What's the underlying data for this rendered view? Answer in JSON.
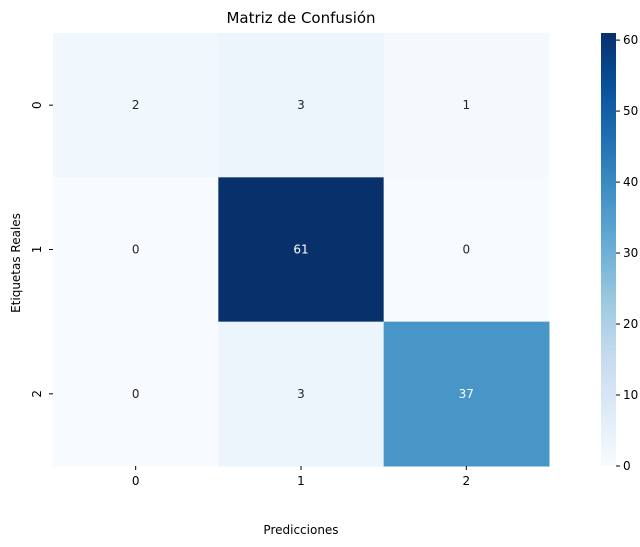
{
  "chart_data": {
    "type": "heatmap",
    "title": "Matriz de Confusión",
    "xlabel": "Predicciones",
    "ylabel": "Etiquetas Reales",
    "x_categories": [
      "0",
      "1",
      "2"
    ],
    "y_categories": [
      "0",
      "1",
      "2"
    ],
    "values": [
      [
        2,
        3,
        1
      ],
      [
        0,
        61,
        0
      ],
      [
        0,
        3,
        37
      ]
    ],
    "colormap": "Blues",
    "color_range": [
      0,
      61
    ],
    "colorbar_ticks": [
      0,
      10,
      20,
      30,
      40,
      50,
      60
    ],
    "annotations": true,
    "grid": false,
    "legend": "colorbar-right"
  }
}
